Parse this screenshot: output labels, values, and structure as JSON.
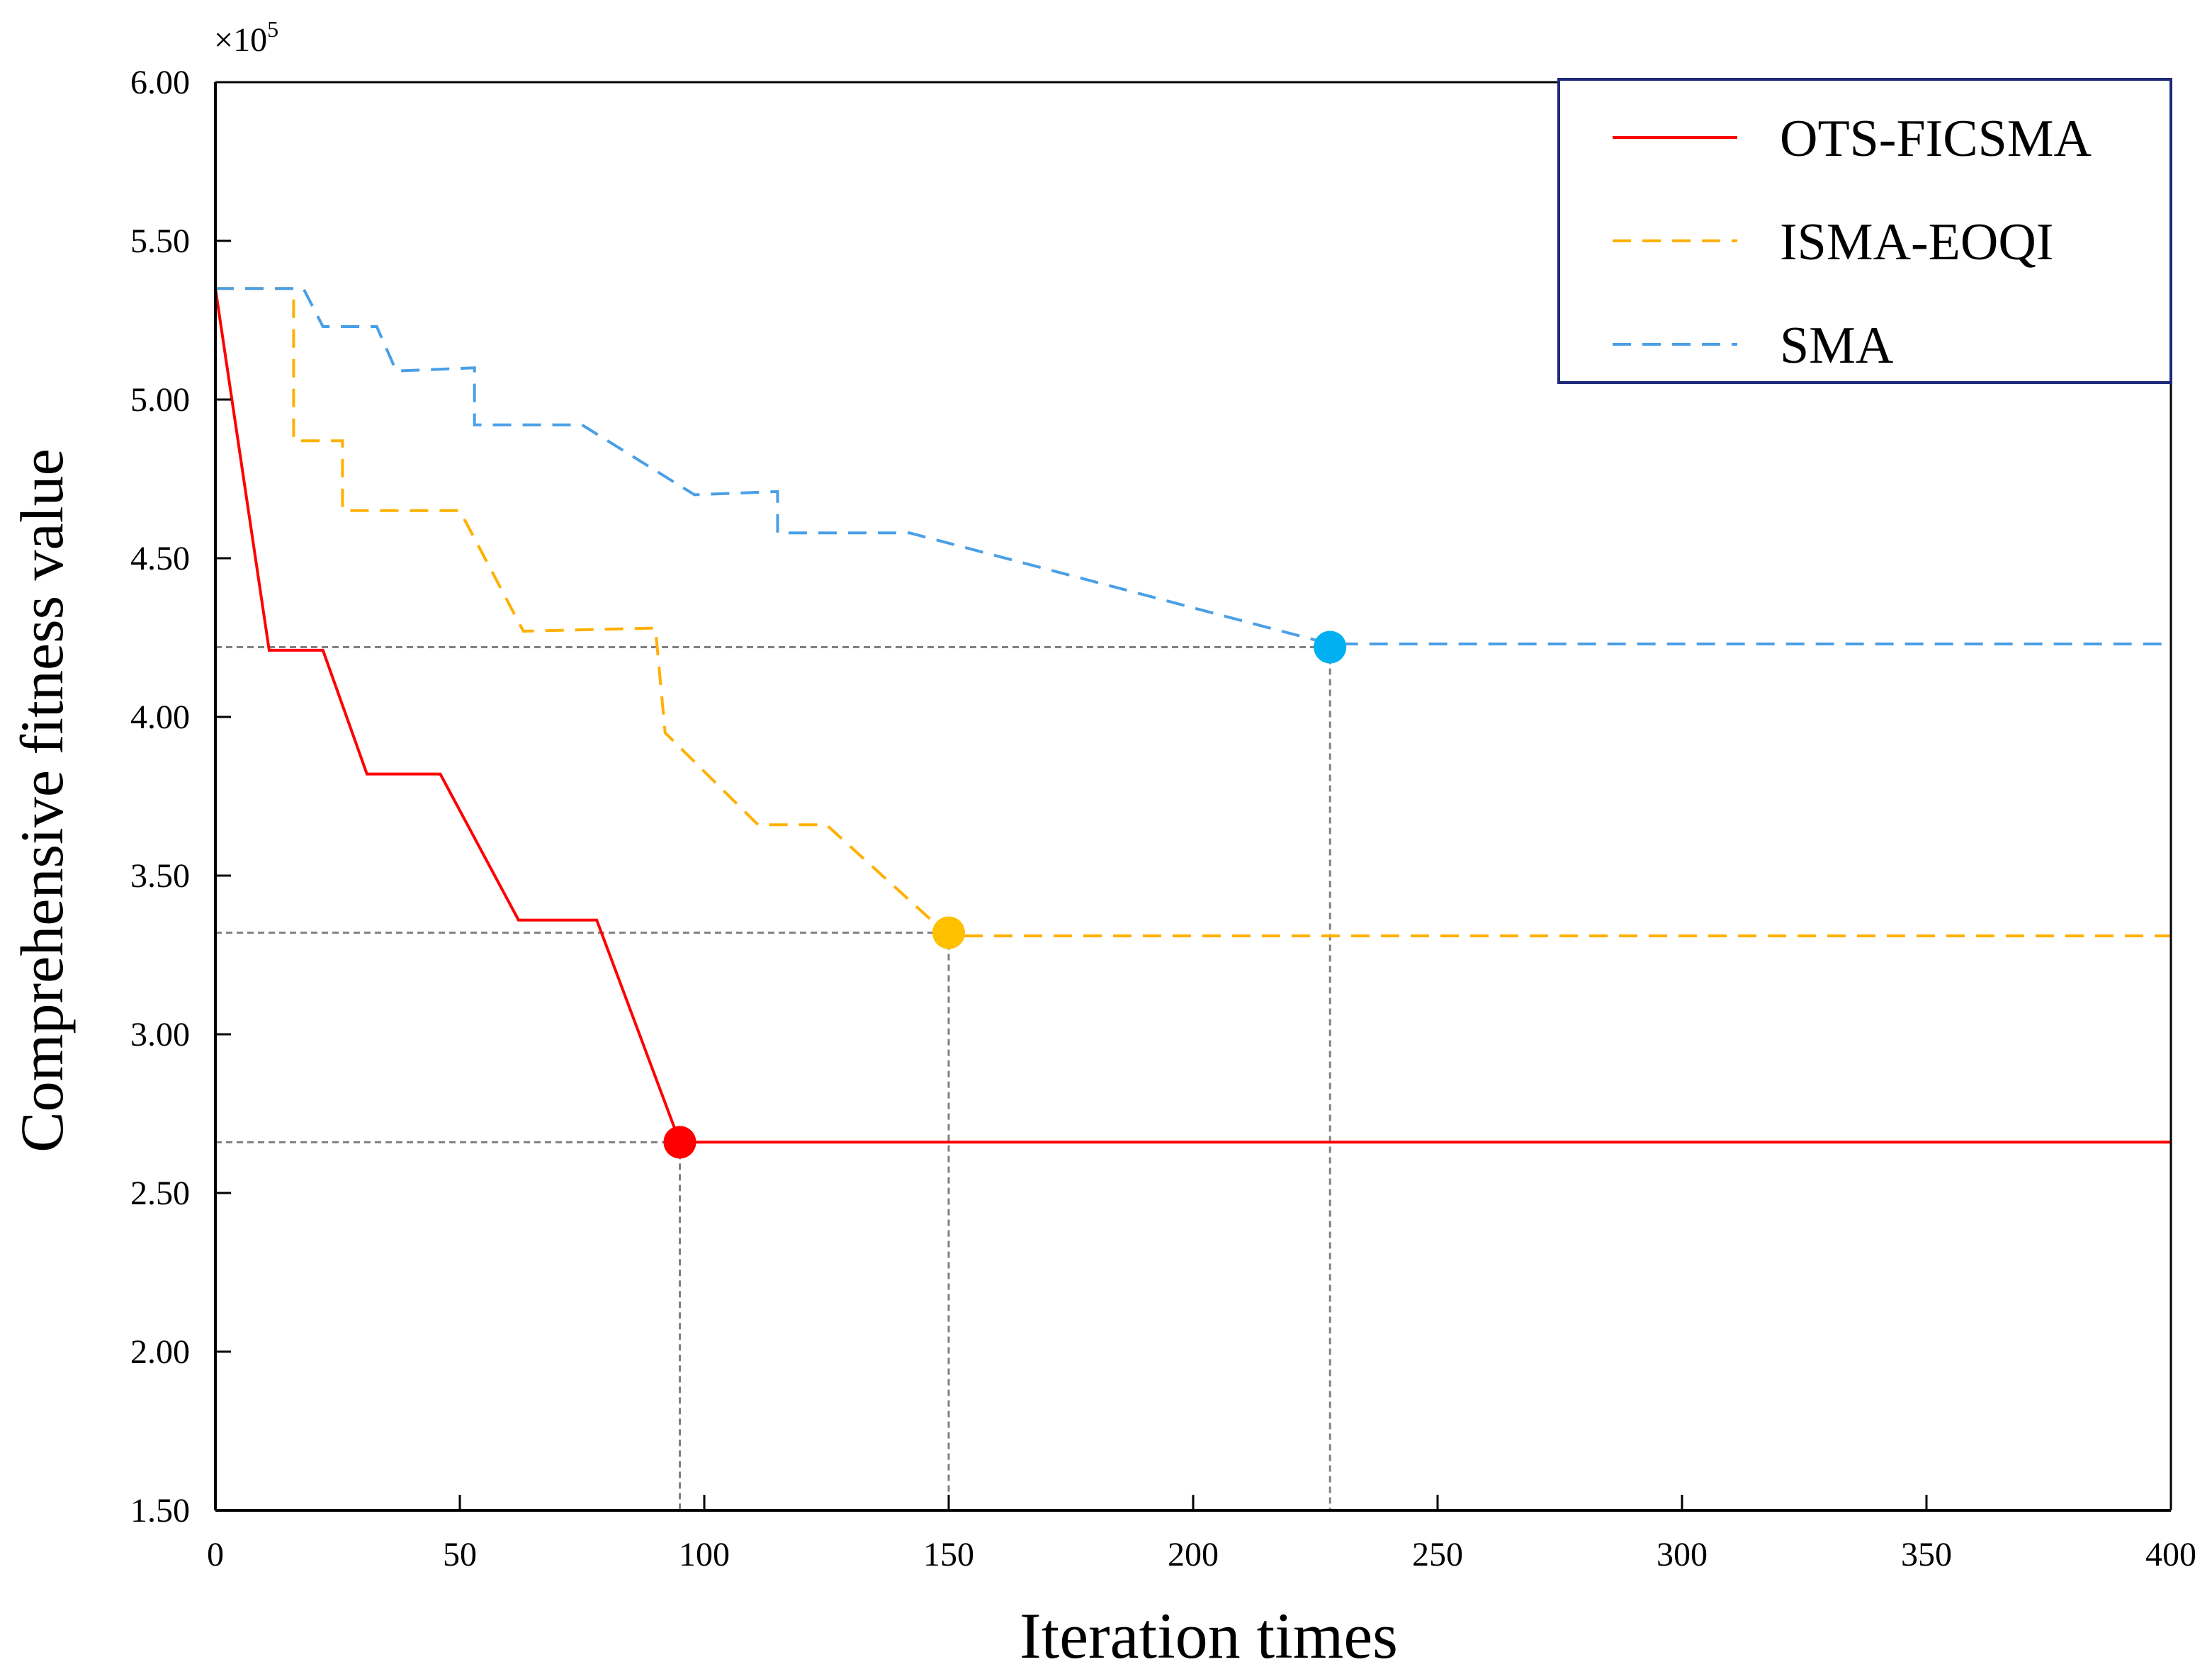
{
  "chart_data": {
    "type": "line",
    "title": "",
    "xlabel": "Iteration times",
    "ylabel": "Comprehensive fitness value",
    "y_multiplier_label": "×10",
    "y_multiplier_exponent": "5",
    "xlim": [
      0,
      400
    ],
    "ylim": [
      1.5,
      6.0
    ],
    "x_ticks": [
      0,
      50,
      100,
      150,
      200,
      250,
      300,
      350,
      400
    ],
    "x_tick_labels": [
      "0",
      "50",
      "100",
      "150",
      "200",
      "250",
      "300",
      "350",
      "400"
    ],
    "y_ticks": [
      1.5,
      2.0,
      2.5,
      3.0,
      3.5,
      4.0,
      4.5,
      5.0,
      5.5,
      6.0
    ],
    "y_tick_labels": [
      "1.50",
      "2.00",
      "2.50",
      "3.00",
      "3.50",
      "4.00",
      "4.50",
      "5.00",
      "5.50",
      "6.00"
    ],
    "grid": false,
    "legend_position": "top-right",
    "series": [
      {
        "name": "OTS-FICSMA",
        "color": "#ff0000",
        "style": "solid",
        "x": [
          0,
          11,
          22,
          31,
          46,
          62,
          78,
          95,
          400
        ],
        "y": [
          5.35,
          4.21,
          4.21,
          3.82,
          3.82,
          3.36,
          3.36,
          2.66,
          2.66
        ]
      },
      {
        "name": "ISMA-EOQI",
        "color": "#ffb000",
        "style": "dashed",
        "x": [
          0,
          16,
          16,
          26,
          26,
          50,
          63,
          90,
          90,
          92,
          111,
          125,
          150,
          400
        ],
        "y": [
          5.35,
          5.35,
          4.87,
          4.87,
          4.65,
          4.65,
          4.27,
          4.28,
          4.28,
          3.95,
          3.66,
          3.66,
          3.31,
          3.31
        ],
        "note_corner": [
          [
            90,
            4.28
          ],
          [
            90,
            3.95
          ]
        ]
      },
      {
        "name": "SMA",
        "color": "#4a9fe6",
        "style": "dashed",
        "x": [
          0,
          18,
          22,
          33,
          37,
          53,
          53,
          75,
          98,
          115,
          115,
          142,
          228,
          400
        ],
        "y": [
          5.35,
          5.35,
          5.23,
          5.23,
          5.09,
          5.1,
          4.92,
          4.92,
          4.7,
          4.71,
          4.58,
          4.58,
          4.23,
          4.23
        ]
      }
    ],
    "convergence_markers": [
      {
        "series": "OTS-FICSMA",
        "x": 95,
        "y": 2.66,
        "color": "#ff0000"
      },
      {
        "series": "ISMA-EOQI",
        "x": 150,
        "y": 3.32,
        "color": "#ffc000"
      },
      {
        "series": "SMA",
        "x": 228,
        "y": 4.22,
        "color": "#00b0f0"
      }
    ],
    "reference_line_color": "#808080"
  }
}
